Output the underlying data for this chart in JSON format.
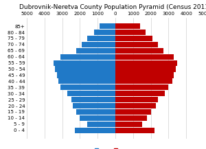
{
  "title": "Dubrovnik-Neretva County Population Pyramid (Census 2011)",
  "age_groups": [
    "0 - 4",
    "5 - 9",
    "10 - 14",
    "15 - 19",
    "20 - 24",
    "25 - 29",
    "30 - 34",
    "35 - 39",
    "40 - 44",
    "45 - 49",
    "50 - 54",
    "55 - 59",
    "60 - 64",
    "65 - 69",
    "70 - 74",
    "75 - 79",
    "80 - 84",
    "85+"
  ],
  "male": [
    2300,
    1600,
    2000,
    2200,
    2400,
    2500,
    2700,
    3100,
    3200,
    3300,
    3400,
    3500,
    3100,
    2200,
    1900,
    1600,
    1200,
    900
  ],
  "female": [
    2200,
    1500,
    1800,
    2000,
    2300,
    2400,
    2800,
    3000,
    3200,
    3300,
    3400,
    3500,
    3300,
    2700,
    2400,
    2100,
    1700,
    1400
  ],
  "male_color": "#2079c7",
  "female_color": "#c00000",
  "xlim": 5000,
  "bg_color": "#ffffff",
  "grid_color": "#d0d0d0",
  "title_fontsize": 6.5,
  "label_fontsize": 5,
  "tick_fontsize": 5
}
